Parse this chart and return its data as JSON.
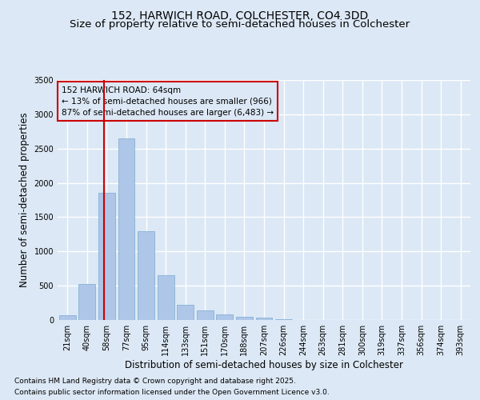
{
  "title": "152, HARWICH ROAD, COLCHESTER, CO4 3DD",
  "subtitle": "Size of property relative to semi-detached houses in Colchester",
  "xlabel": "Distribution of semi-detached houses by size in Colchester",
  "ylabel": "Number of semi-detached properties",
  "categories": [
    "21sqm",
    "40sqm",
    "58sqm",
    "77sqm",
    "95sqm",
    "114sqm",
    "133sqm",
    "151sqm",
    "170sqm",
    "188sqm",
    "207sqm",
    "226sqm",
    "244sqm",
    "263sqm",
    "281sqm",
    "300sqm",
    "319sqm",
    "337sqm",
    "356sqm",
    "374sqm",
    "393sqm"
  ],
  "values": [
    70,
    530,
    1850,
    2650,
    1300,
    650,
    220,
    140,
    80,
    50,
    30,
    10,
    5,
    2,
    1,
    0,
    0,
    0,
    0,
    0,
    0
  ],
  "bar_color": "#aec6e8",
  "bar_edge_color": "#7aaad0",
  "background_color": "#dce8f5",
  "grid_color": "#ffffff",
  "annotation_box_color": "#cc0000",
  "annotation_box_bg": "#dce8f5",
  "property_line_color": "#cc0000",
  "property_bin_index": 2,
  "annotation_title": "152 HARWICH ROAD: 64sqm",
  "annotation_line1": "← 13% of semi-detached houses are smaller (966)",
  "annotation_line2": "87% of semi-detached houses are larger (6,483) →",
  "footer_line1": "Contains HM Land Registry data © Crown copyright and database right 2025.",
  "footer_line2": "Contains public sector information licensed under the Open Government Licence v3.0.",
  "ylim": [
    0,
    3500
  ],
  "yticks": [
    0,
    500,
    1000,
    1500,
    2000,
    2500,
    3000,
    3500
  ],
  "title_fontsize": 10,
  "subtitle_fontsize": 9.5,
  "axis_label_fontsize": 8.5,
  "tick_fontsize": 7,
  "annotation_fontsize": 7.5,
  "footer_fontsize": 6.5
}
